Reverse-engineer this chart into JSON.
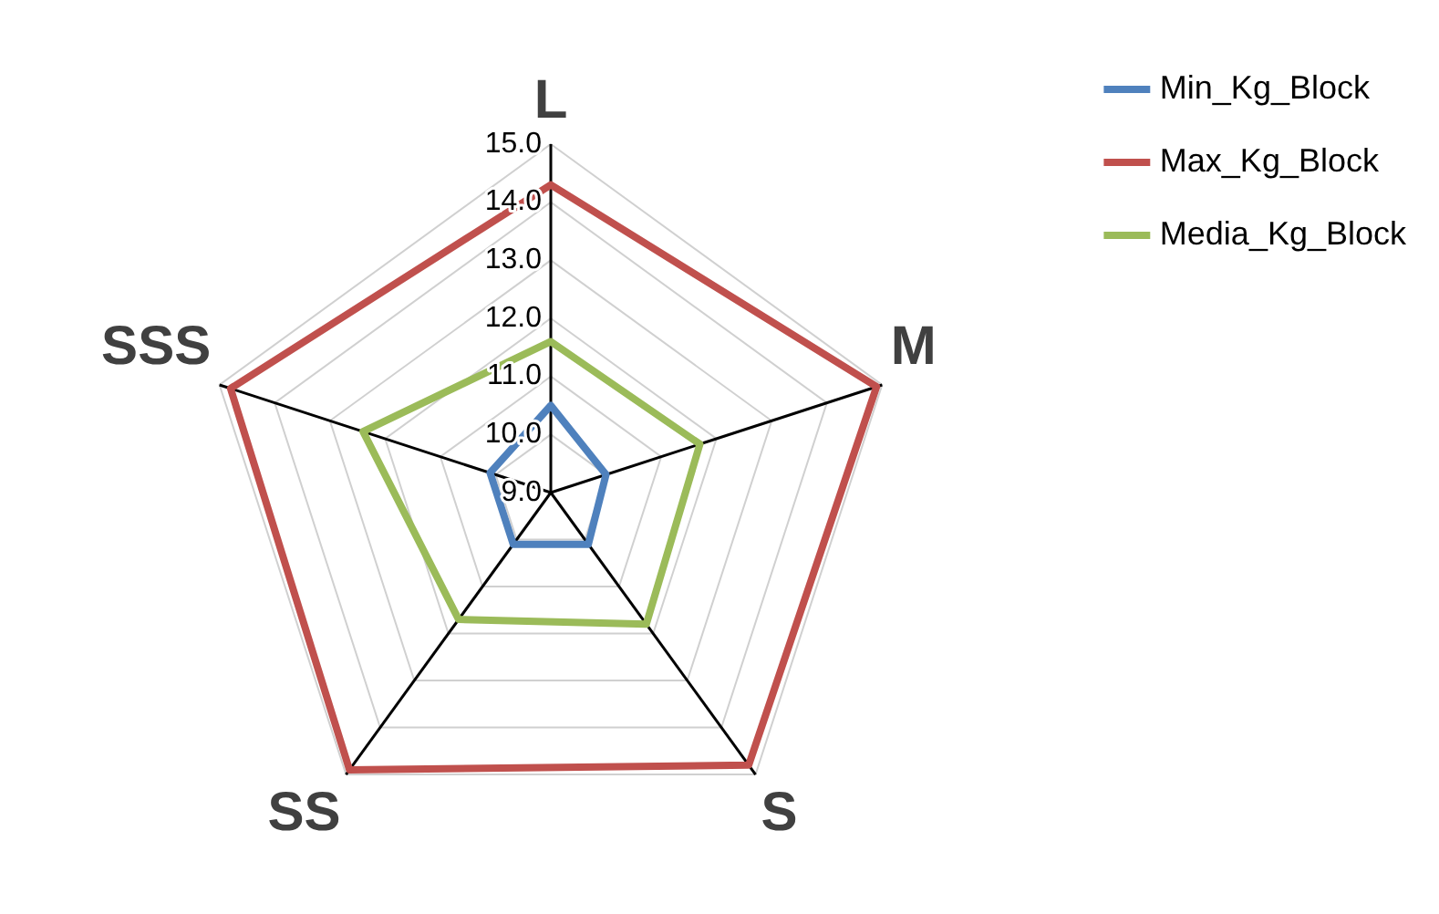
{
  "chart_data": {
    "type": "radar",
    "categories": [
      "L",
      "M",
      "S",
      "SS",
      "SSS"
    ],
    "series": [
      {
        "name": "Min_Kg_Block",
        "color": "#4f81bd",
        "values": [
          10.5,
          10.0,
          10.1,
          10.1,
          10.1
        ]
      },
      {
        "name": "Max_Kg_Block",
        "color": "#c0504d",
        "values": [
          14.3,
          14.9,
          14.8,
          14.9,
          14.8
        ]
      },
      {
        "name": "Media_Kg_Block",
        "color": "#9bbb59",
        "values": [
          11.6,
          11.7,
          11.8,
          11.7,
          12.4
        ]
      }
    ],
    "ylim": [
      9,
      15
    ],
    "yticks": [
      {
        "value": 9,
        "label": "9.0"
      },
      {
        "value": 10,
        "label": "10.0"
      },
      {
        "value": 11,
        "label": "11.0"
      },
      {
        "value": 12,
        "label": "12.0"
      },
      {
        "value": 13,
        "label": "13.0"
      },
      {
        "value": 14,
        "label": "14.0"
      },
      {
        "value": 15,
        "label": "15.0"
      }
    ],
    "grid": true,
    "legend": "top right",
    "marker": "none",
    "line_style": "solid"
  }
}
